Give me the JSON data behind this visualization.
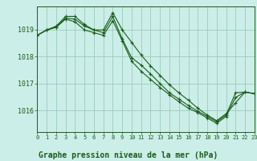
{
  "title": "Graphe pression niveau de la mer (hPa)",
  "bg_color": "#cceee8",
  "grid_color": "#99ccbb",
  "line_color": "#1a5c1a",
  "xlim": [
    0,
    23
  ],
  "ylim": [
    1015.2,
    1019.85
  ],
  "yticks": [
    1016,
    1017,
    1018,
    1019
  ],
  "xticks": [
    0,
    1,
    2,
    3,
    4,
    5,
    6,
    7,
    8,
    9,
    10,
    11,
    12,
    13,
    14,
    15,
    16,
    17,
    18,
    19,
    20,
    21,
    22,
    23
  ],
  "series1": [
    1018.78,
    1018.98,
    1019.08,
    1019.42,
    1019.38,
    1019.12,
    1018.98,
    1018.88,
    1019.48,
    1018.65,
    1017.95,
    1017.68,
    1017.35,
    1017.0,
    1016.65,
    1016.42,
    1016.18,
    1015.97,
    1015.78,
    1015.58,
    1015.83,
    1016.65,
    1016.68,
    1016.62
  ],
  "series2": [
    1018.78,
    1018.98,
    1019.12,
    1019.48,
    1019.48,
    1019.18,
    1018.98,
    1018.98,
    1019.62,
    1018.98,
    1018.52,
    1018.05,
    1017.65,
    1017.3,
    1016.95,
    1016.65,
    1016.38,
    1016.08,
    1015.83,
    1015.62,
    1015.88,
    1016.28,
    1016.68,
    1016.62
  ],
  "series3": [
    1018.78,
    1018.98,
    1019.08,
    1019.38,
    1019.28,
    1018.98,
    1018.88,
    1018.78,
    1019.32,
    1018.58,
    1017.82,
    1017.45,
    1017.15,
    1016.85,
    1016.58,
    1016.32,
    1016.08,
    1015.92,
    1015.72,
    1015.52,
    1015.78,
    1016.48,
    1016.68,
    1016.62
  ]
}
